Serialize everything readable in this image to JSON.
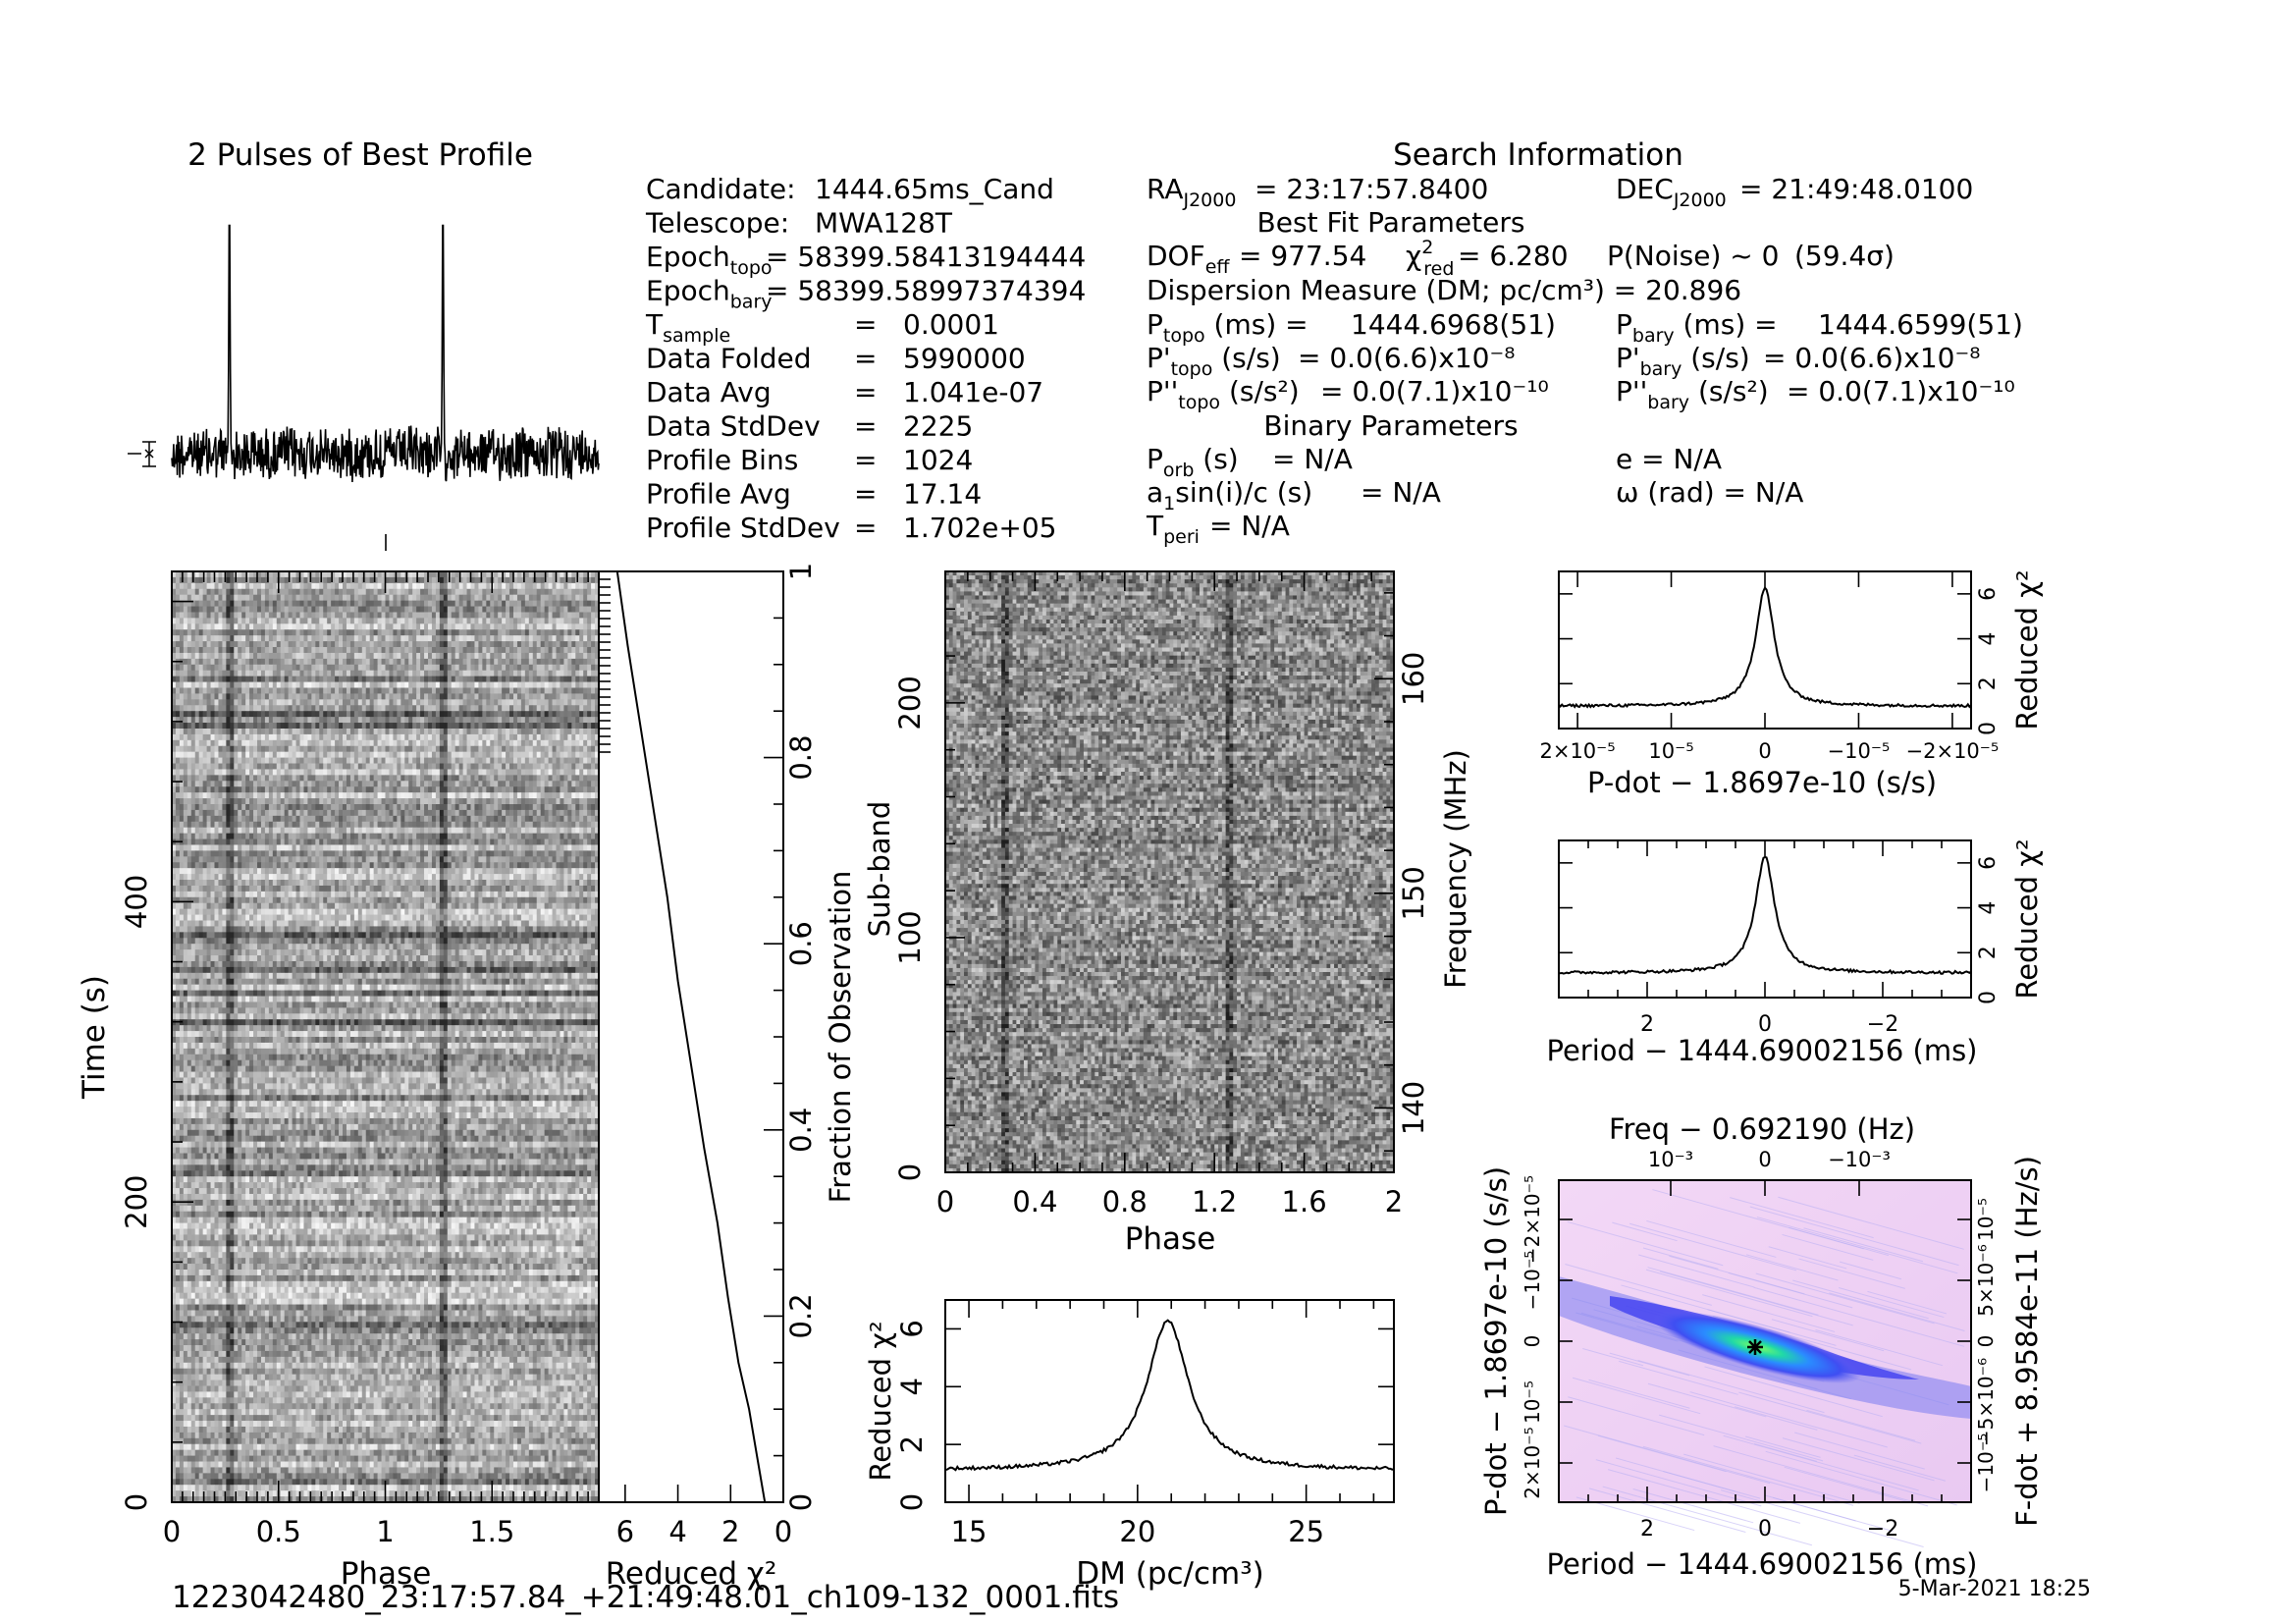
{
  "footer": {
    "filename": "1223042480_23:17:57.84_+21:49:48.01_ch109-132_0001.fits",
    "date": "5-Mar-2021 18:25"
  },
  "info": {
    "search_title": "Search Information",
    "best_fit_title": "Best Fit Parameters",
    "binary_title": "Binary Parameters",
    "rows": [
      {
        "label": "Candidate:",
        "value": "1444.65ms_Cand"
      },
      {
        "label": "Telescope:",
        "value": "MWA128T"
      },
      {
        "label": "Epoch_topo",
        "value": "= 58399.58413194444"
      },
      {
        "label": "Epoch_bary",
        "value": "= 58399.58997374394"
      },
      {
        "label": "T_sample",
        "value": "0.0001"
      },
      {
        "label": "Data Folded",
        "value": "5990000"
      },
      {
        "label": "Data Avg",
        "value": "1.041e-07"
      },
      {
        "label": "Data StdDev",
        "value": "2225"
      },
      {
        "label": "Profile Bins",
        "value": "1024"
      },
      {
        "label": "Profile Avg",
        "value": "17.14"
      },
      {
        "label": "Profile StdDev",
        "value": "1.702e+05"
      }
    ],
    "ra": "= 23:17:57.8400",
    "dec": "= 21:49:48.0100",
    "dof": "= 977.54",
    "chi2red": "= 6.280",
    "pnoise": "P(Noise) ~ 0",
    "sigma": "(59.4σ)",
    "dm_line": "Dispersion Measure (DM; pc/cm³) = 20.896",
    "p_topo": "1444.6968(51)",
    "p_bary": "1444.6599(51)",
    "pd_topo": "= 0.0(6.6)x10⁻⁸",
    "pd_bary": "= 0.0(6.6)x10⁻⁸",
    "pdd_topo": "= 0.0(7.1)x10⁻¹⁰",
    "pdd_bary": "= 0.0(7.1)x10⁻¹⁰",
    "porb": "= N/A",
    "asini": "= N/A",
    "tperi": "= N/A",
    "ecc": "e = N/A",
    "omega": "ω (rad) = N/A"
  },
  "labels": {
    "profile_title": "2 Pulses of Best Profile",
    "phase": "Phase",
    "time_s": "Time (s)",
    "reduced_chi2": "Reduced χ²",
    "fraction_obs": "Fraction of Observation",
    "sub_band": "Sub-band",
    "frequency": "Frequency (MHz)",
    "dm_axis": "DM (pc/cm³)",
    "pdot_axis": "P-dot − 1.8697e-10 (s/s)",
    "period_axis": "Period − 1444.69002156 (ms)",
    "freq_axis": "Freq − 0.692190 (Hz)",
    "fdot_axis": "F-dot + 8.9584e-11 (Hz/s)"
  },
  "chart_data": [
    {
      "type": "line",
      "title": "2 Pulses of Best Profile",
      "x_range": [
        0,
        2
      ],
      "peaks_at_phase": [
        0.27,
        1.27
      ]
    },
    {
      "type": "heatmap",
      "xlabel": "Phase",
      "ylabel": "Time (s)",
      "xlim": [
        0,
        2
      ],
      "ylim": [
        0,
        620
      ],
      "x_ticks": [
        0,
        0.5,
        1,
        1.5
      ],
      "y_ticks": [
        0,
        200,
        400
      ],
      "pulse_phase": [
        0.27,
        1.27
      ]
    },
    {
      "type": "line",
      "xlabel": "Reduced χ²",
      "ylabel": "Fraction of Observation",
      "xlim": [
        7,
        0
      ],
      "ylim": [
        0,
        1
      ],
      "x_ticks": [
        6,
        4,
        2,
        0
      ],
      "y_ticks": [
        0,
        0.2,
        0.4,
        0.6,
        0.8,
        1
      ],
      "x": [
        0.7,
        1.0,
        1.3,
        1.7,
        2.1,
        2.5,
        3.0,
        3.5,
        4.0,
        4.4,
        4.9,
        5.4,
        5.9,
        6.3
      ],
      "y": [
        0,
        0.05,
        0.1,
        0.15,
        0.22,
        0.3,
        0.38,
        0.47,
        0.56,
        0.65,
        0.74,
        0.83,
        0.92,
        1.0
      ]
    },
    {
      "type": "heatmap",
      "xlabel": "Phase",
      "ylabel": "Sub-band",
      "y2label": "Frequency (MHz)",
      "xlim": [
        0,
        2
      ],
      "ylim": [
        0,
        256
      ],
      "x_ticks": [
        0,
        0.4,
        0.8,
        1.2,
        1.6,
        2
      ],
      "y_ticks": [
        0,
        100,
        200
      ],
      "y2_ticks": [
        140,
        150,
        160
      ],
      "pulse_phase": [
        0.27,
        1.27
      ]
    },
    {
      "type": "line",
      "xlabel": "DM (pc/cm³)",
      "ylabel": "Reduced χ²",
      "xlim": [
        14.3,
        27.6
      ],
      "ylim": [
        0,
        7
      ],
      "x_ticks": [
        15,
        20,
        25
      ],
      "y_ticks": [
        0,
        2,
        4,
        6
      ],
      "peak": {
        "x": 20.896,
        "y": 6.28
      },
      "baseline": 1.1
    },
    {
      "type": "line",
      "xlabel": "P-dot − 1.8697e-10 (s/s)",
      "ylabel": "Reduced χ²",
      "xlim": [
        2.2e-05,
        -2.2e-05
      ],
      "ylim": [
        0,
        7
      ],
      "x_ticks": [
        "2×10⁻⁵",
        "10⁻⁵",
        "0",
        "−10⁻⁵",
        "−2×10⁻⁵"
      ],
      "y_ticks": [
        0,
        2,
        4,
        6
      ],
      "peak": {
        "x": 0,
        "y": 6.28
      },
      "baseline": 1.0
    },
    {
      "type": "line",
      "xlabel": "Period − 1444.69002156 (ms)",
      "ylabel": "Reduced χ²",
      "xlim": [
        3.5,
        -3.5
      ],
      "ylim": [
        0,
        7
      ],
      "x_ticks": [
        2,
        0,
        -2
      ],
      "y_ticks": [
        0,
        2,
        4,
        6
      ],
      "peak": {
        "x": 0,
        "y": 6.28
      },
      "baseline": 1.1
    },
    {
      "type": "heatmap",
      "xlabel": "Period − 1444.69002156 (ms)",
      "ylabel": "P-dot − 1.8697e-10 (s/s)",
      "x2label": "Freq − 0.692190 (Hz)",
      "y2label": "F-dot + 8.9584e-11 (Hz/s)",
      "x_ticks": [
        2,
        0,
        -2
      ],
      "x2_ticks": [
        "−10⁻³",
        "0",
        "10⁻³"
      ],
      "y_ticks": [
        "2×10⁻⁵",
        "10⁻⁵",
        "0",
        "−10⁻⁵",
        "−2×10⁻⁵"
      ],
      "y2_ticks": [
        "−10⁻⁵",
        "−5×10⁻⁶",
        "0",
        "5×10⁻⁶",
        "10⁻⁵"
      ],
      "best": {
        "x": 0,
        "y": 0
      }
    }
  ]
}
